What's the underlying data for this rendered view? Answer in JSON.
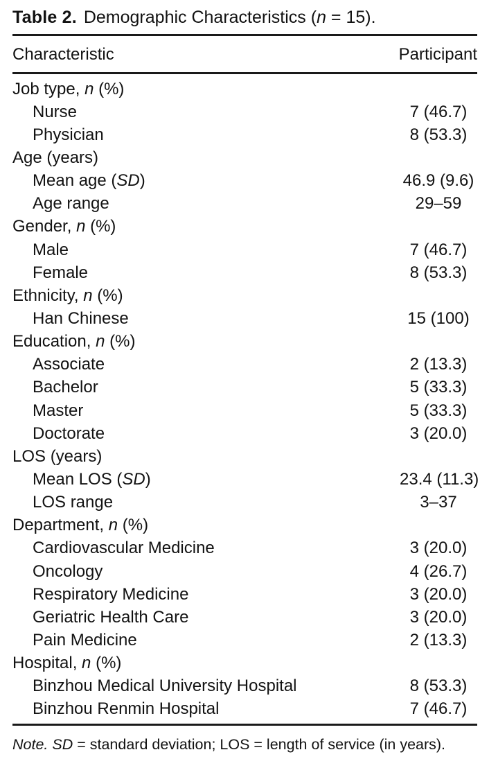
{
  "colors": {
    "background": "#ffffff",
    "text": "#121212",
    "rule": "#1a1a1a"
  },
  "table": {
    "title": {
      "label": "Table 2.",
      "text_pre": "Demographic Characteristics (",
      "n_italic": "n",
      "text_post": " = 15)."
    },
    "columns": [
      "Characteristic",
      "Participant"
    ],
    "rows": [
      {
        "pre": "Job type, ",
        "it": "n",
        "post": " (%)",
        "value": "",
        "indent": 0
      },
      {
        "pre": "Nurse",
        "value": "7 (46.7)",
        "indent": 1
      },
      {
        "pre": "Physician",
        "value": "8 (53.3)",
        "indent": 1
      },
      {
        "pre": "Age (years)",
        "value": "",
        "indent": 0
      },
      {
        "pre": "Mean age (",
        "it": "SD",
        "post": ")",
        "value": "46.9 (9.6)",
        "indent": 1
      },
      {
        "pre": "Age range",
        "value": "29–59",
        "indent": 1
      },
      {
        "pre": "Gender, ",
        "it": "n",
        "post": " (%)",
        "value": "",
        "indent": 0
      },
      {
        "pre": "Male",
        "value": "7 (46.7)",
        "indent": 1
      },
      {
        "pre": "Female",
        "value": "8 (53.3)",
        "indent": 1
      },
      {
        "pre": "Ethnicity, ",
        "it": "n",
        "post": " (%)",
        "value": "",
        "indent": 0
      },
      {
        "pre": "Han Chinese",
        "value": "15 (100)",
        "indent": 1
      },
      {
        "pre": "Education, ",
        "it": "n",
        "post": " (%)",
        "value": "",
        "indent": 0
      },
      {
        "pre": "Associate",
        "value": "2 (13.3)",
        "indent": 1
      },
      {
        "pre": "Bachelor",
        "value": "5 (33.3)",
        "indent": 1
      },
      {
        "pre": "Master",
        "value": "5 (33.3)",
        "indent": 1
      },
      {
        "pre": "Doctorate",
        "value": "3 (20.0)",
        "indent": 1
      },
      {
        "pre": "LOS (years)",
        "value": "",
        "indent": 0
      },
      {
        "pre": "Mean LOS (",
        "it": "SD",
        "post": ")",
        "value": "23.4 (11.3)",
        "indent": 1
      },
      {
        "pre": "LOS range",
        "value": "3–37",
        "indent": 1
      },
      {
        "pre": "Department, ",
        "it": "n",
        "post": " (%)",
        "value": "",
        "indent": 0
      },
      {
        "pre": "Cardiovascular Medicine",
        "value": "3 (20.0)",
        "indent": 1
      },
      {
        "pre": "Oncology",
        "value": "4 (26.7)",
        "indent": 1
      },
      {
        "pre": "Respiratory Medicine",
        "value": "3 (20.0)",
        "indent": 1
      },
      {
        "pre": "Geriatric Health Care",
        "value": "3 (20.0)",
        "indent": 1
      },
      {
        "pre": "Pain Medicine",
        "value": "2 (13.3)",
        "indent": 1
      },
      {
        "pre": "Hospital, ",
        "it": "n",
        "post": " (%)",
        "value": "",
        "indent": 0
      },
      {
        "pre": "Binzhou Medical University Hospital",
        "value": "8 (53.3)",
        "indent": 1
      },
      {
        "pre": "Binzhou Renmin Hospital",
        "value": "7 (46.7)",
        "indent": 1
      }
    ]
  },
  "note": {
    "label": "Note. ",
    "sd_italic": "SD",
    "text": " = standard deviation; LOS = length of service (in years)."
  }
}
